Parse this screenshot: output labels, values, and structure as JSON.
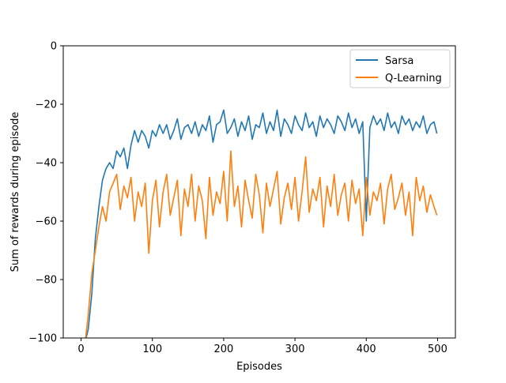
{
  "chart_data": {
    "type": "line",
    "title": "",
    "xlabel": "Episodes",
    "ylabel": "Sum of rewards during episode",
    "xlim": [
      -25,
      525
    ],
    "ylim": [
      -100,
      0
    ],
    "xticks": [
      0,
      100,
      200,
      300,
      400,
      500
    ],
    "yticks": [
      0,
      -20,
      -40,
      -60,
      -80,
      -100
    ],
    "grid": false,
    "legend_position": "top-right",
    "series": [
      {
        "name": "Sarsa",
        "color": "#1f77b4",
        "x": [
          0,
          5,
          10,
          15,
          20,
          25,
          30,
          35,
          40,
          45,
          50,
          55,
          60,
          65,
          70,
          75,
          80,
          85,
          90,
          95,
          100,
          105,
          110,
          115,
          120,
          125,
          130,
          135,
          140,
          145,
          150,
          155,
          160,
          165,
          170,
          175,
          180,
          185,
          190,
          195,
          200,
          205,
          210,
          215,
          220,
          225,
          230,
          235,
          240,
          245,
          250,
          255,
          260,
          265,
          270,
          275,
          280,
          285,
          290,
          295,
          300,
          305,
          310,
          315,
          320,
          325,
          330,
          335,
          340,
          345,
          350,
          355,
          360,
          365,
          370,
          375,
          380,
          385,
          390,
          395,
          400,
          405,
          410,
          415,
          420,
          425,
          430,
          435,
          440,
          445,
          450,
          455,
          460,
          465,
          470,
          475,
          480,
          485,
          490,
          495,
          499
        ],
        "values": [
          -120,
          -102,
          -97,
          -85,
          -66,
          -55,
          -46,
          -42,
          -40,
          -42,
          -36,
          -38,
          -35,
          -42,
          -34,
          -29,
          -33,
          -29,
          -31,
          -35,
          -29,
          -31,
          -27,
          -30,
          -27,
          -32,
          -29,
          -25,
          -32,
          -28,
          -27,
          -30,
          -26,
          -31,
          -27,
          -29,
          -24,
          -33,
          -27,
          -26,
          -22,
          -30,
          -28,
          -25,
          -31,
          -26,
          -29,
          -24,
          -32,
          -27,
          -28,
          -23,
          -30,
          -26,
          -29,
          -22,
          -31,
          -25,
          -27,
          -30,
          -24,
          -27,
          -29,
          -23,
          -28,
          -26,
          -31,
          -24,
          -28,
          -25,
          -27,
          -30,
          -24,
          -26,
          -29,
          -23,
          -28,
          -25,
          -30,
          -26,
          -60,
          -28,
          -24,
          -27,
          -25,
          -29,
          -23,
          -28,
          -26,
          -30,
          -24,
          -27,
          -25,
          -29,
          -26,
          -28,
          -24,
          -30,
          -27,
          -26,
          -30
        ]
      },
      {
        "name": "Q-Learning",
        "color": "#ff7f0e",
        "x": [
          0,
          5,
          10,
          15,
          20,
          25,
          30,
          35,
          40,
          45,
          50,
          55,
          60,
          65,
          70,
          75,
          80,
          85,
          90,
          95,
          100,
          105,
          110,
          115,
          120,
          125,
          130,
          135,
          140,
          145,
          150,
          155,
          160,
          165,
          170,
          175,
          180,
          185,
          190,
          195,
          200,
          205,
          210,
          215,
          220,
          225,
          230,
          235,
          240,
          245,
          250,
          255,
          260,
          265,
          270,
          275,
          280,
          285,
          290,
          295,
          300,
          305,
          310,
          315,
          320,
          325,
          330,
          335,
          340,
          345,
          350,
          355,
          360,
          365,
          370,
          375,
          380,
          385,
          390,
          395,
          400,
          405,
          410,
          415,
          420,
          425,
          430,
          435,
          440,
          445,
          450,
          455,
          460,
          465,
          470,
          475,
          480,
          485,
          490,
          495,
          499
        ],
        "values": [
          -120,
          -103,
          -92,
          -78,
          -70,
          -62,
          -55,
          -60,
          -50,
          -47,
          -44,
          -56,
          -48,
          -52,
          -45,
          -60,
          -50,
          -55,
          -47,
          -71,
          -53,
          -46,
          -62,
          -50,
          -44,
          -58,
          -52,
          -46,
          -65,
          -49,
          -55,
          -44,
          -60,
          -48,
          -53,
          -66,
          -45,
          -58,
          -50,
          -54,
          -43,
          -60,
          -36,
          -55,
          -48,
          -62,
          -46,
          -53,
          -59,
          -44,
          -51,
          -64,
          -47,
          -55,
          -49,
          -43,
          -61,
          -52,
          -47,
          -56,
          -45,
          -60,
          -50,
          -38,
          -57,
          -49,
          -53,
          -45,
          -62,
          -48,
          -55,
          -44,
          -58,
          -51,
          -47,
          -60,
          -46,
          -54,
          -49,
          -65,
          -45,
          -58,
          -50,
          -53,
          -47,
          -61,
          -49,
          -44,
          -56,
          -52,
          -47,
          -58,
          -50,
          -65,
          -45,
          -53,
          -48,
          -57,
          -51,
          -55,
          -58
        ]
      }
    ]
  }
}
